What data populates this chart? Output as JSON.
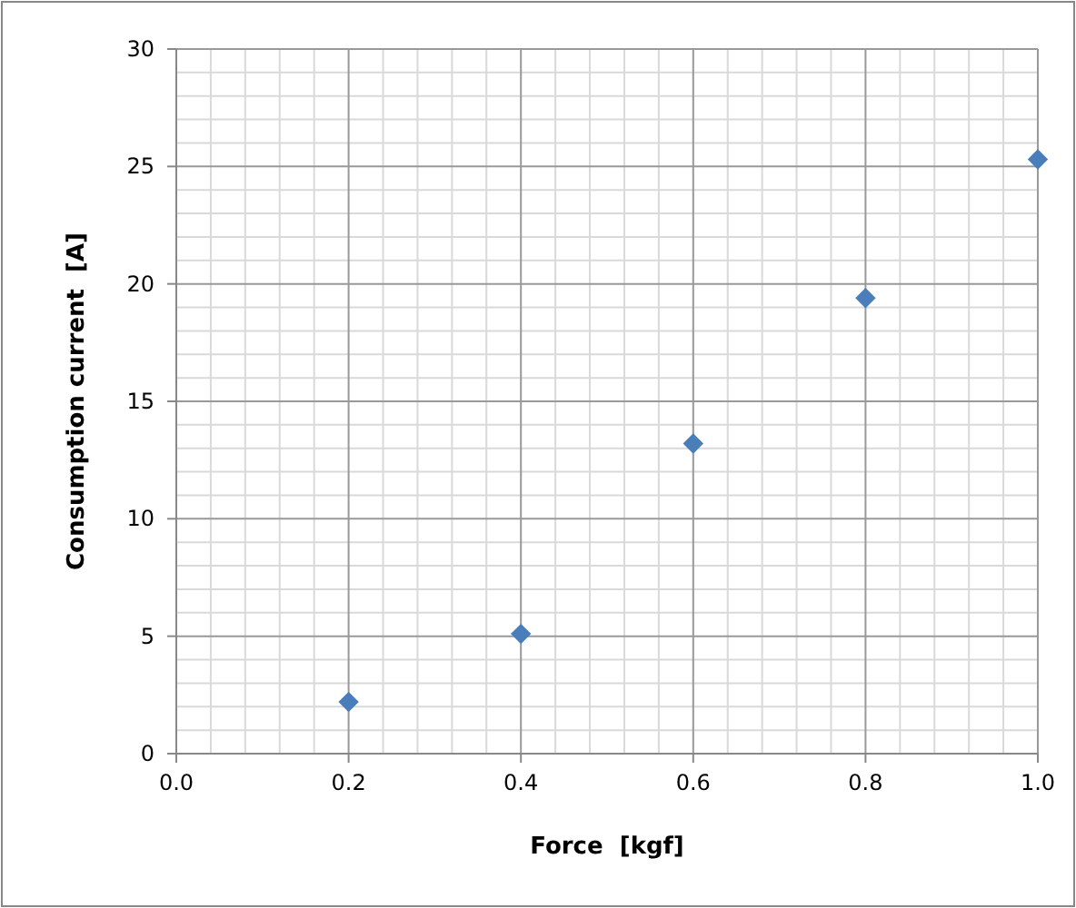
{
  "chart_data": {
    "type": "scatter",
    "xlabel": "Force  [kgf]",
    "ylabel": "Consumption current  [A]",
    "x": [
      0.2,
      0.4,
      0.6,
      0.8,
      1.0
    ],
    "series": [
      {
        "color": "#4a7ebb",
        "values": [
          2.2,
          5.1,
          13.2,
          19.4,
          25.3
        ]
      }
    ],
    "xlim": [
      0,
      1
    ],
    "xticks": [
      {
        "value": 0,
        "label": "0.0"
      },
      {
        "value": 0.2,
        "label": "0.2"
      },
      {
        "value": 0.4,
        "label": "0.4"
      },
      {
        "value": 0.6,
        "label": "0.6"
      },
      {
        "value": 0.8,
        "label": "0.8"
      },
      {
        "value": 1,
        "label": "1.0"
      }
    ],
    "ylim": [
      0,
      30
    ],
    "yticks": [
      0,
      5,
      10,
      15,
      20,
      25,
      30
    ],
    "grid": true,
    "marker": "diamond"
  }
}
